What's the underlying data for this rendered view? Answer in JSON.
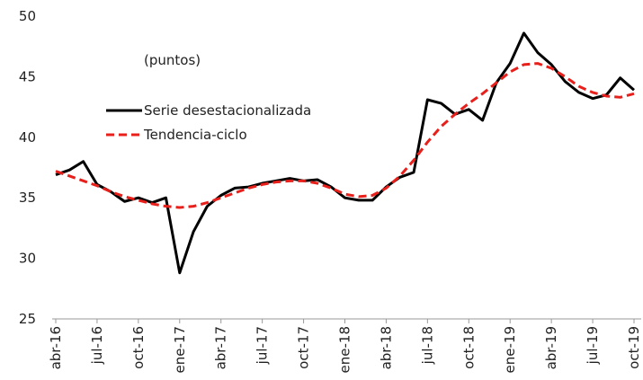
{
  "chart_data": {
    "type": "line",
    "annotation": "(puntos)",
    "categories": [
      "abr-16",
      null,
      null,
      "jul-16",
      null,
      null,
      "oct-16",
      null,
      null,
      "ene-17",
      null,
      null,
      "abr-17",
      null,
      null,
      "jul-17",
      null,
      null,
      "oct-17",
      null,
      null,
      "ene-18",
      null,
      null,
      "abr-18",
      null,
      null,
      "jul-18",
      null,
      null,
      "oct-18",
      null,
      null,
      "ene-19",
      null,
      null,
      "abr-19",
      null,
      null,
      "jul-19",
      null,
      null,
      "oct-19"
    ],
    "series": [
      {
        "name": "Serie desestacionalizada",
        "color": "#000000",
        "dash": false,
        "values": [
          36.9,
          37.3,
          38.0,
          36.1,
          35.5,
          34.7,
          35.0,
          34.6,
          35.0,
          28.8,
          32.2,
          34.3,
          35.2,
          35.8,
          35.9,
          36.2,
          36.4,
          36.6,
          36.4,
          36.5,
          35.9,
          35.0,
          34.8,
          34.8,
          35.9,
          36.7,
          37.1,
          43.1,
          42.8,
          41.9,
          42.3,
          41.4,
          44.5,
          46.1,
          48.6,
          47.0,
          46.0,
          44.6,
          43.7,
          43.2,
          43.5,
          44.9,
          43.9
        ]
      },
      {
        "name": "Tendencia-ciclo",
        "color": "#e8201c",
        "dash": true,
        "values": [
          37.2,
          36.8,
          36.4,
          36.0,
          35.5,
          35.1,
          34.8,
          34.5,
          34.3,
          34.2,
          34.3,
          34.6,
          35.0,
          35.4,
          35.8,
          36.1,
          36.3,
          36.4,
          36.4,
          36.2,
          35.8,
          35.3,
          35.1,
          35.2,
          35.8,
          36.8,
          38.1,
          39.6,
          40.9,
          41.9,
          42.8,
          43.6,
          44.5,
          45.4,
          46.0,
          46.1,
          45.7,
          45.0,
          44.2,
          43.7,
          43.4,
          43.3,
          43.6
        ]
      }
    ],
    "ylim": [
      25,
      50
    ],
    "yticks": [
      25,
      30,
      35,
      40,
      45,
      50
    ],
    "grid": false
  }
}
